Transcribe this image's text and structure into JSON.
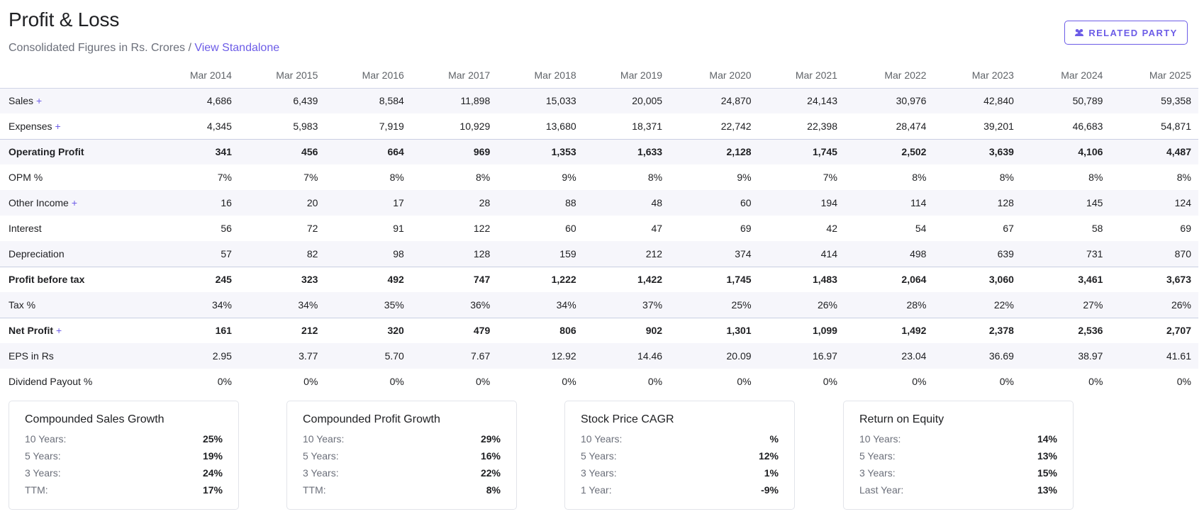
{
  "header": {
    "title": "Profit & Loss",
    "subtitle": "Consolidated Figures in Rs. Crores / ",
    "standalone_link": "View Standalone",
    "related_party_label": "RELATED PARTY"
  },
  "table": {
    "columns": [
      "Mar 2014",
      "Mar 2015",
      "Mar 2016",
      "Mar 2017",
      "Mar 2018",
      "Mar 2019",
      "Mar 2020",
      "Mar 2021",
      "Mar 2022",
      "Mar 2023",
      "Mar 2024",
      "Mar 2025"
    ],
    "rows": [
      {
        "label": "Sales",
        "plus": true,
        "bold": false,
        "alt": true,
        "sep": false,
        "values": [
          "4,686",
          "6,439",
          "8,584",
          "11,898",
          "15,033",
          "20,005",
          "24,870",
          "24,143",
          "30,976",
          "42,840",
          "50,789",
          "59,358"
        ]
      },
      {
        "label": "Expenses",
        "plus": true,
        "bold": false,
        "alt": false,
        "sep": false,
        "values": [
          "4,345",
          "5,983",
          "7,919",
          "10,929",
          "13,680",
          "18,371",
          "22,742",
          "22,398",
          "28,474",
          "39,201",
          "46,683",
          "54,871"
        ]
      },
      {
        "label": "Operating Profit",
        "plus": false,
        "bold": true,
        "alt": true,
        "sep": true,
        "values": [
          "341",
          "456",
          "664",
          "969",
          "1,353",
          "1,633",
          "2,128",
          "1,745",
          "2,502",
          "3,639",
          "4,106",
          "4,487"
        ]
      },
      {
        "label": "OPM %",
        "plus": false,
        "bold": false,
        "alt": false,
        "sep": false,
        "values": [
          "7%",
          "7%",
          "8%",
          "8%",
          "9%",
          "8%",
          "9%",
          "7%",
          "8%",
          "8%",
          "8%",
          "8%"
        ]
      },
      {
        "label": "Other Income",
        "plus": true,
        "bold": false,
        "alt": true,
        "sep": false,
        "values": [
          "16",
          "20",
          "17",
          "28",
          "88",
          "48",
          "60",
          "194",
          "114",
          "128",
          "145",
          "124"
        ]
      },
      {
        "label": "Interest",
        "plus": false,
        "bold": false,
        "alt": false,
        "sep": false,
        "values": [
          "56",
          "72",
          "91",
          "122",
          "60",
          "47",
          "69",
          "42",
          "54",
          "67",
          "58",
          "69"
        ]
      },
      {
        "label": "Depreciation",
        "plus": false,
        "bold": false,
        "alt": true,
        "sep": false,
        "values": [
          "57",
          "82",
          "98",
          "128",
          "159",
          "212",
          "374",
          "414",
          "498",
          "639",
          "731",
          "870"
        ]
      },
      {
        "label": "Profit before tax",
        "plus": false,
        "bold": true,
        "alt": false,
        "sep": true,
        "values": [
          "245",
          "323",
          "492",
          "747",
          "1,222",
          "1,422",
          "1,745",
          "1,483",
          "2,064",
          "3,060",
          "3,461",
          "3,673"
        ]
      },
      {
        "label": "Tax %",
        "plus": false,
        "bold": false,
        "alt": true,
        "sep": false,
        "values": [
          "34%",
          "34%",
          "35%",
          "36%",
          "34%",
          "37%",
          "25%",
          "26%",
          "28%",
          "22%",
          "27%",
          "26%"
        ]
      },
      {
        "label": "Net Profit",
        "plus": true,
        "bold": true,
        "alt": false,
        "sep": true,
        "values": [
          "161",
          "212",
          "320",
          "479",
          "806",
          "902",
          "1,301",
          "1,099",
          "1,492",
          "2,378",
          "2,536",
          "2,707"
        ]
      },
      {
        "label": "EPS in Rs",
        "plus": false,
        "bold": false,
        "alt": true,
        "sep": false,
        "values": [
          "2.95",
          "3.77",
          "5.70",
          "7.67",
          "12.92",
          "14.46",
          "20.09",
          "16.97",
          "23.04",
          "36.69",
          "38.97",
          "41.61"
        ]
      },
      {
        "label": "Dividend Payout %",
        "plus": false,
        "bold": false,
        "alt": false,
        "sep": false,
        "values": [
          "0%",
          "0%",
          "0%",
          "0%",
          "0%",
          "0%",
          "0%",
          "0%",
          "0%",
          "0%",
          "0%",
          "0%"
        ]
      }
    ]
  },
  "cards": [
    {
      "title": "Compounded Sales Growth",
      "rows": [
        [
          "10 Years:",
          "25%"
        ],
        [
          "5 Years:",
          "19%"
        ],
        [
          "3 Years:",
          "24%"
        ],
        [
          "TTM:",
          "17%"
        ]
      ]
    },
    {
      "title": "Compounded Profit Growth",
      "rows": [
        [
          "10 Years:",
          "29%"
        ],
        [
          "5 Years:",
          "16%"
        ],
        [
          "3 Years:",
          "22%"
        ],
        [
          "TTM:",
          "8%"
        ]
      ]
    },
    {
      "title": "Stock Price CAGR",
      "rows": [
        [
          "10 Years:",
          "%"
        ],
        [
          "5 Years:",
          "12%"
        ],
        [
          "3 Years:",
          "1%"
        ],
        [
          "1 Year:",
          "-9%"
        ]
      ]
    },
    {
      "title": "Return on Equity",
      "rows": [
        [
          "10 Years:",
          "14%"
        ],
        [
          "5 Years:",
          "13%"
        ],
        [
          "3 Years:",
          "15%"
        ],
        [
          "Last Year:",
          "13%"
        ]
      ]
    }
  ],
  "colors": {
    "accent": "#6c5ce7",
    "alt_row": "#f6f6fb"
  },
  "icons": {
    "related_party": "users-icon",
    "expand": "plus-icon"
  }
}
